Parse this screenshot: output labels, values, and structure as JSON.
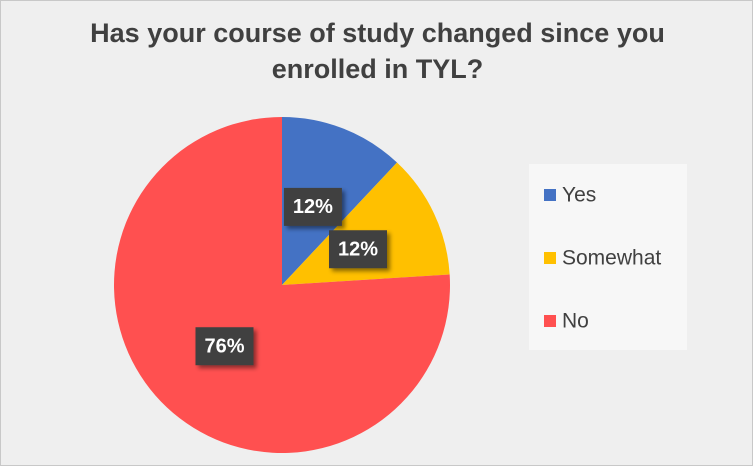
{
  "chart_data": {
    "type": "pie",
    "title": "Has your course of study changed since you enrolled in TYL?",
    "categories": [
      "Yes",
      "Somewhat",
      "No"
    ],
    "values": [
      12,
      12,
      76
    ],
    "value_labels": [
      "12%",
      "12%",
      "76%"
    ],
    "colors": [
      "#4472c4",
      "#ffc000",
      "#ff5050"
    ],
    "legend": "right"
  }
}
